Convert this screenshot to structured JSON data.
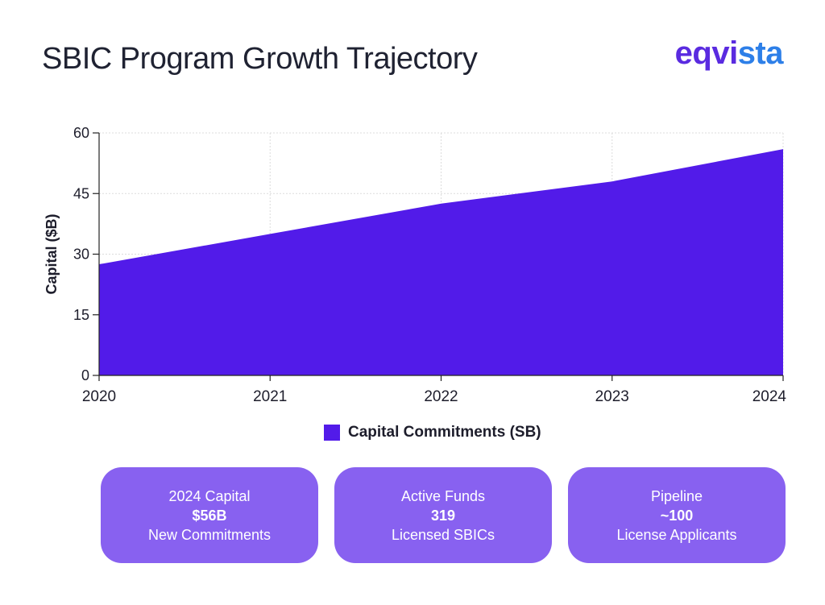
{
  "header": {
    "title": "SBIC Program Growth Trajectory"
  },
  "logo": {
    "main": "eqvi",
    "accent": "sta",
    "icon": "eqvista-logo-icon"
  },
  "chart_data": {
    "type": "area",
    "title": "",
    "xlabel": "",
    "ylabel": "Capital ($B)",
    "x": [
      2020,
      2021,
      2022,
      2023,
      2024
    ],
    "series": [
      {
        "name": "Capital Commitments (SB)",
        "values": [
          27.5,
          35,
          42.5,
          48,
          56
        ]
      }
    ],
    "xlim": [
      2020,
      2024
    ],
    "ylim": [
      0,
      60
    ],
    "yticks": [
      0,
      15,
      30,
      45,
      60
    ],
    "xticks": [
      "2020",
      "2021",
      "2022",
      "2023",
      "2024"
    ],
    "grid": true,
    "legend": "bottom-center",
    "color": "#521be9"
  },
  "legend": {
    "label": "Capital Commitments (SB)"
  },
  "cards": [
    {
      "title": "2024 Capital",
      "value": "$56B",
      "subtitle": "New Commitments"
    },
    {
      "title": "Active Funds",
      "value": "319",
      "subtitle": "Licensed SBICs"
    },
    {
      "title": "Pipeline",
      "value": "~100",
      "subtitle": "License Applicants"
    }
  ]
}
